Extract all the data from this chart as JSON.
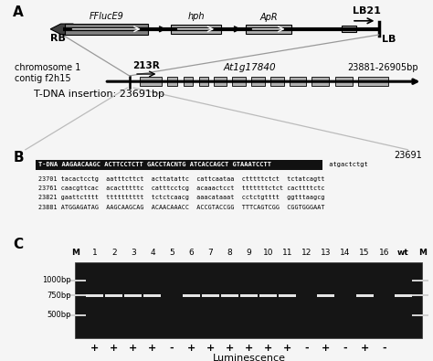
{
  "panel_A_label": "A",
  "panel_B_label": "B",
  "panel_C_label": "C",
  "rb_label": "RB",
  "lb_label": "LB",
  "lb21_label": "LB21",
  "chrom_label": "chromosome 1\ncontig f2h15",
  "primer_label": "213R",
  "gene_label": "At1g17840",
  "position_label": "23881-26905bp",
  "insertion_label": "T-DNA insertion: 23691bp",
  "position_number": "23691",
  "seq_line0_white": "T-DNA AAGAACAAGC ACTTCCTCTT GACCTACNTG ATCACCAGCT GTAAATCCTT",
  "seq_line0_normal": " atgactctgt",
  "seq_line1": "23701 tacactcctg  aatttcttct  acttatattc  cattcaataa  ctttttctct  tctatcagtt",
  "seq_line2": "23761 caacgttcac  acactttttc  catttcctcg  acaaactcct  tttttttctct cacttttctc",
  "seq_line3": "23821 gaattctttt  tttttttttt  tctctcaacg  aaacataaat  cctctgtttt  ggtttaagcg",
  "seq_line4": "23881 ATGGAGATAG  AAGCAAGCAG  ACAACAAACC  ACCGTACCGG  TTTCAGTCGG  CGGTGGGAAT",
  "gel_lanes": [
    "M",
    "1",
    "2",
    "3",
    "4",
    "5",
    "6",
    "7",
    "8",
    "9",
    "10",
    "11",
    "12",
    "13",
    "14",
    "15",
    "16",
    "wt",
    "M"
  ],
  "lum_values": [
    "",
    "+",
    "+",
    "+",
    "+",
    "-",
    "+",
    "+",
    "+",
    "+",
    "+",
    "+",
    "-",
    "+",
    "-",
    "+",
    "-",
    "",
    ""
  ],
  "lum_label": "Luminescence",
  "bp_labels": [
    "1000bp",
    "750bp",
    "500bp"
  ],
  "bg_color": "#f0f0f0",
  "gray_box": "#b0b0b0",
  "dark_gray_box": "#808080",
  "gel_bg": "#151515",
  "band_color": "#e0e0e0",
  "marker_color": "#d0d0d0"
}
